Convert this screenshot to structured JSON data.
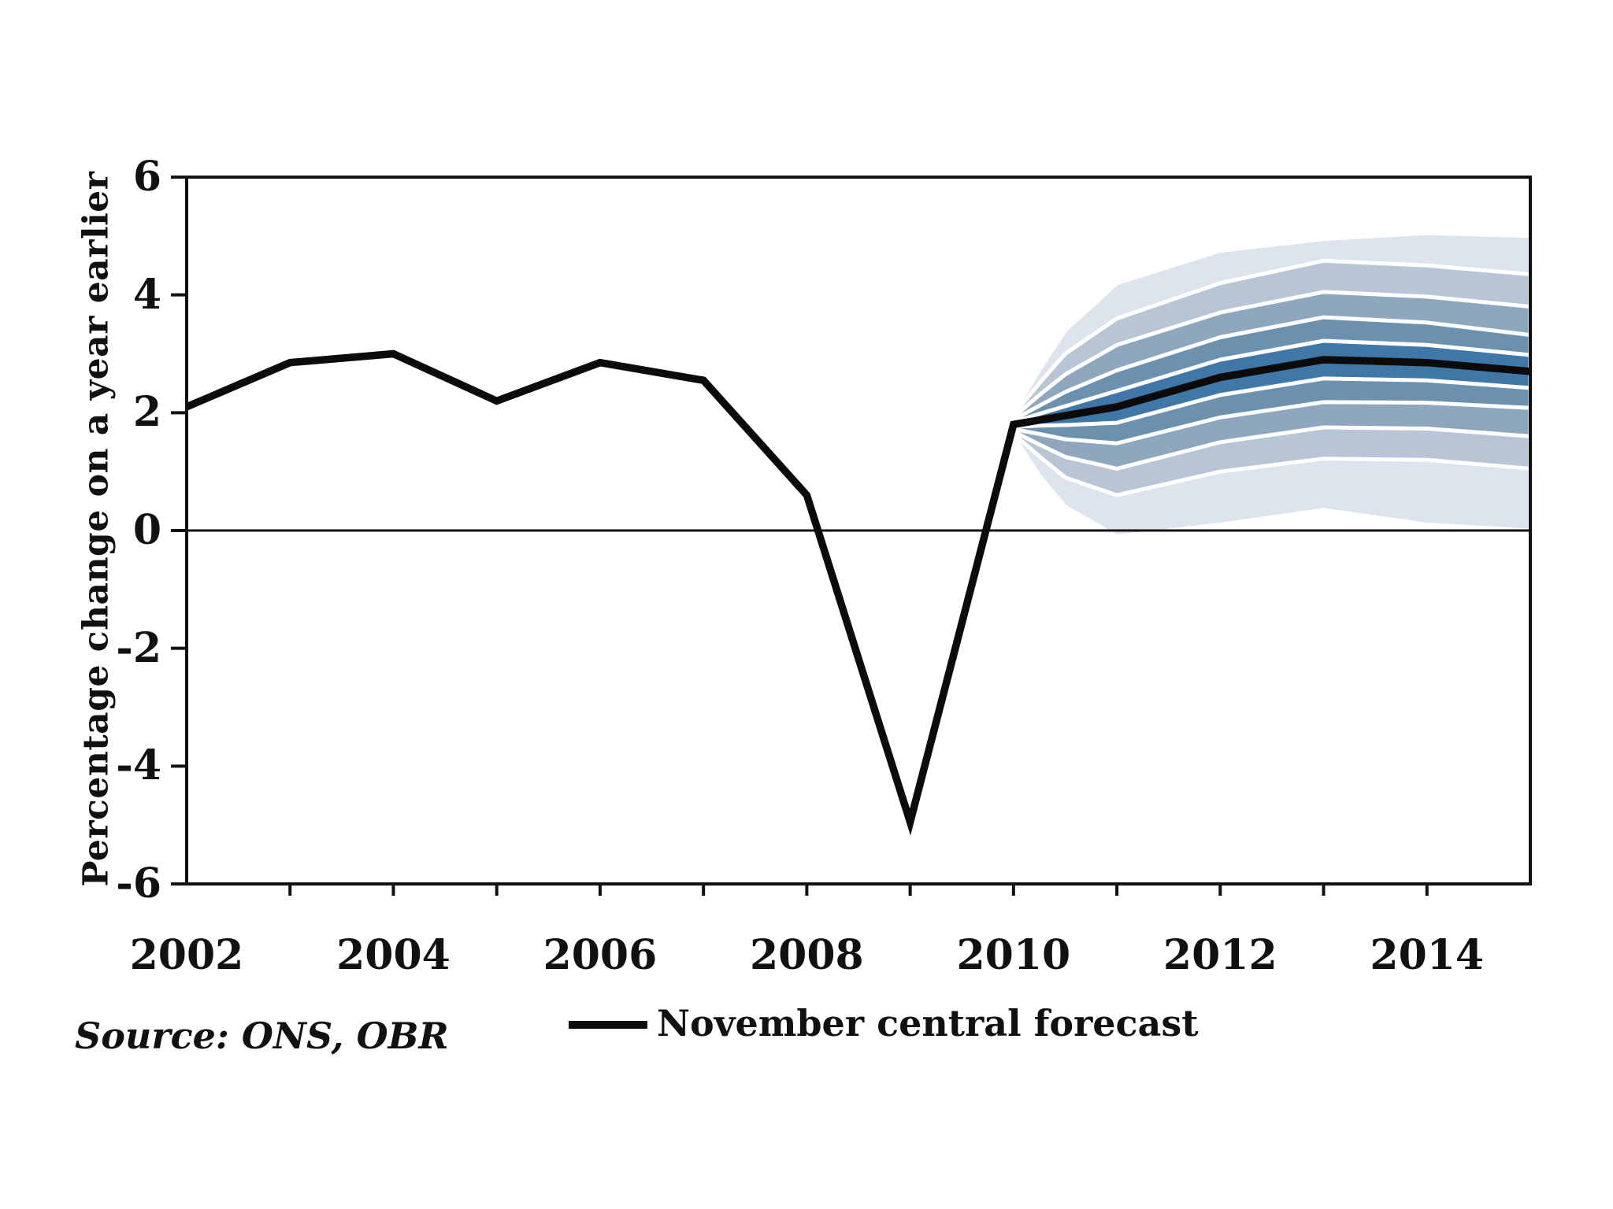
{
  "page": {
    "background": "#ffffff",
    "text_color": "#111111"
  },
  "labels": {
    "y_axis": "Percentage change on a year earlier",
    "source": "Source: ONS, OBR"
  },
  "legend": {
    "label": "November central forecast",
    "swatch_color": "#0b0b0b"
  },
  "chart_data": {
    "type": "line",
    "title": "",
    "xlabel": "",
    "ylabel": "Percentage change on a year earlier",
    "x_domain": [
      2002,
      2015
    ],
    "ylim": [
      -6,
      6
    ],
    "y_ticks": [
      6,
      4,
      2,
      0,
      -2,
      -4,
      -6
    ],
    "x_tick_labels": [
      "2002",
      "2004",
      "2006",
      "2008",
      "2010",
      "2012",
      "2014"
    ],
    "x_tick_label_years": [
      2002,
      2004,
      2006,
      2008,
      2010,
      2012,
      2014
    ],
    "x_minor_ticks": [
      2003,
      2004,
      2005,
      2006,
      2007,
      2008,
      2009,
      2010,
      2011,
      2012,
      2013,
      2014
    ],
    "grid": "off",
    "zero_line": true,
    "legend_position": "bottom-center",
    "series": [
      {
        "name": "November central forecast",
        "color": "#0b0b0b",
        "x": [
          2002,
          2003,
          2004,
          2005,
          2006,
          2007,
          2008,
          2009,
          2010,
          2011,
          2012,
          2013,
          2014,
          2015
        ],
        "values": [
          2.1,
          2.85,
          3.0,
          2.2,
          2.85,
          2.55,
          0.6,
          -4.95,
          1.8,
          2.1,
          2.6,
          2.9,
          2.85,
          2.7
        ]
      }
    ],
    "fan": {
      "description": "Forecast uncertainty fan from 2010 to 2015; 5 probability shades from outermost/lightest to innermost/darkest, separated by thin white lines. offsets = half-widths of the 4 inner band boundaries around the central forecast; outer_up/outer_down = outermost boundary offsets.",
      "colors": [
        "#dde4ee",
        "#b7c5d6",
        "#8fa7be",
        "#6c91af",
        "#3f77a6"
      ],
      "separator_color": "#ffffff",
      "points": [
        {
          "x": 2010.0,
          "center": 1.8,
          "offsets": [
            0.04,
            0.08,
            0.12,
            0.16
          ],
          "outer_up": 0.2,
          "outer_down": 0.2
        },
        {
          "x": 2010.25,
          "center": 1.88,
          "offsets": [
            0.1,
            0.24,
            0.42,
            0.62
          ],
          "outer_up": 0.85,
          "outer_down": 0.95
        },
        {
          "x": 2010.5,
          "center": 1.95,
          "offsets": [
            0.16,
            0.4,
            0.7,
            1.05
          ],
          "outer_up": 1.45,
          "outer_down": 1.55
        },
        {
          "x": 2011.0,
          "center": 2.1,
          "offsets": [
            0.27,
            0.62,
            1.05,
            1.5
          ],
          "outer_up": 2.1,
          "outer_down": 2.2
        },
        {
          "x": 2012.0,
          "center": 2.6,
          "offsets": [
            0.3,
            0.68,
            1.1,
            1.6
          ],
          "outer_up": 2.15,
          "outer_down": 2.5
        },
        {
          "x": 2013.0,
          "center": 2.9,
          "offsets": [
            0.32,
            0.72,
            1.15,
            1.68
          ],
          "outer_up": 2.05,
          "outer_down": 2.55
        },
        {
          "x": 2014.0,
          "center": 2.85,
          "offsets": [
            0.3,
            0.68,
            1.12,
            1.65
          ],
          "outer_up": 2.2,
          "outer_down": 2.75
        },
        {
          "x": 2015.0,
          "center": 2.7,
          "offsets": [
            0.28,
            0.62,
            1.1,
            1.65
          ],
          "outer_up": 2.3,
          "outer_down": 2.7
        }
      ]
    }
  }
}
